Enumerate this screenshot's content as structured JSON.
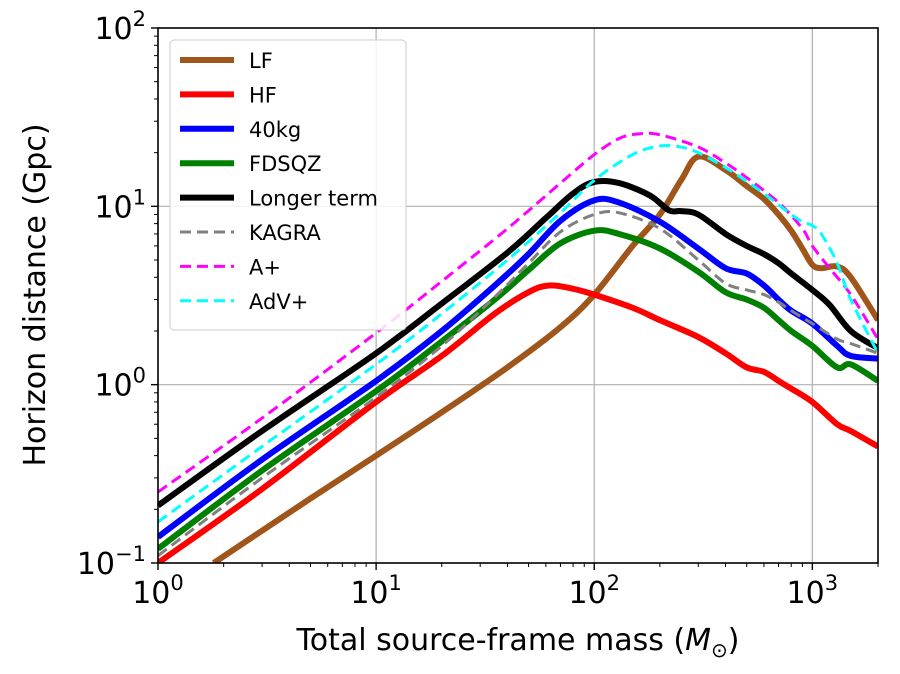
{
  "chart_data": {
    "type": "line",
    "xscale": "log",
    "yscale": "log",
    "xlabel_main": "Total source-frame mass (",
    "xlabel_symbol": "M",
    "xlabel_subscript": "⊙",
    "xlabel_close": ")",
    "ylabel": "Horizon distance (Gpc)",
    "xlim": [
      1,
      2000
    ],
    "ylim": [
      0.1,
      100
    ],
    "grid": true,
    "legend_position": "upper-left",
    "x_ticks": [
      {
        "value": 1,
        "base": "10",
        "exp": "0"
      },
      {
        "value": 10,
        "base": "10",
        "exp": "1"
      },
      {
        "value": 100,
        "base": "10",
        "exp": "2"
      },
      {
        "value": 1000,
        "base": "10",
        "exp": "3"
      }
    ],
    "y_ticks": [
      {
        "value": 0.1,
        "base": "10",
        "exp": "−1"
      },
      {
        "value": 1,
        "base": "10",
        "exp": "0"
      },
      {
        "value": 10,
        "base": "10",
        "exp": "1"
      },
      {
        "value": 100,
        "base": "10",
        "exp": "2"
      }
    ],
    "series": [
      {
        "name": "LF",
        "color": "#a0561a",
        "dash": "solid",
        "x": [
          1.8,
          5,
          10,
          20,
          40,
          70,
          100,
          150,
          200,
          250,
          300,
          400,
          500,
          600,
          700,
          800,
          900,
          1000,
          1100,
          1300,
          1500,
          2000
        ],
        "y": [
          0.1,
          0.23,
          0.4,
          0.7,
          1.25,
          2.1,
          3.2,
          6,
          9,
          14,
          19,
          16,
          13,
          11,
          9,
          7.3,
          5.8,
          4.7,
          4.5,
          4.6,
          4.0,
          2.3
        ]
      },
      {
        "name": "HF",
        "color": "#ff0000",
        "dash": "solid",
        "x": [
          1,
          3,
          10,
          20,
          35,
          50,
          62,
          80,
          100,
          150,
          200,
          300,
          400,
          500,
          600,
          700,
          800,
          1000,
          1300,
          1500,
          2000
        ],
        "y": [
          0.1,
          0.26,
          0.8,
          1.45,
          2.5,
          3.3,
          3.6,
          3.45,
          3.2,
          2.7,
          2.3,
          1.85,
          1.5,
          1.25,
          1.18,
          1.05,
          0.95,
          0.8,
          0.6,
          0.55,
          0.45
        ]
      },
      {
        "name": "40kg",
        "color": "#0000ff",
        "dash": "solid",
        "x": [
          1,
          3,
          10,
          20,
          35,
          50,
          70,
          100,
          130,
          200,
          300,
          400,
          500,
          600,
          700,
          800,
          1000,
          1300,
          1500,
          2000
        ],
        "y": [
          0.14,
          0.38,
          1.05,
          2.0,
          3.6,
          5.4,
          8.3,
          10.8,
          10.5,
          8.2,
          5.8,
          4.5,
          4.2,
          3.6,
          3.0,
          2.6,
          2.2,
          1.65,
          1.45,
          1.4
        ]
      },
      {
        "name": "FDSQZ",
        "color": "#008000",
        "dash": "solid",
        "x": [
          1,
          3,
          10,
          20,
          35,
          50,
          70,
          100,
          130,
          200,
          300,
          400,
          500,
          600,
          700,
          800,
          1000,
          1300,
          1500,
          2000
        ],
        "y": [
          0.12,
          0.33,
          0.92,
          1.75,
          3.0,
          4.4,
          6.2,
          7.3,
          7.0,
          5.8,
          4.3,
          3.3,
          3.0,
          2.7,
          2.3,
          2.0,
          1.65,
          1.25,
          1.3,
          1.05
        ]
      },
      {
        "name": "Longer term",
        "color": "#000000",
        "dash": "solid",
        "x": [
          1,
          3,
          10,
          20,
          40,
          60,
          80,
          100,
          130,
          180,
          220,
          250,
          300,
          400,
          500,
          600,
          700,
          800,
          1000,
          1200,
          1500,
          2000
        ],
        "y": [
          0.21,
          0.55,
          1.5,
          2.85,
          5.5,
          8.6,
          11.8,
          13.7,
          13.5,
          11.5,
          9.5,
          9.4,
          9.0,
          7.0,
          6.0,
          5.4,
          4.8,
          4.2,
          3.4,
          2.8,
          2.0,
          1.6
        ]
      },
      {
        "name": "KAGRA",
        "color": "#808080",
        "dash": "dashed",
        "x": [
          1,
          3,
          10,
          20,
          35,
          50,
          70,
          100,
          130,
          200,
          300,
          400,
          500,
          600,
          700,
          800,
          1000,
          1300,
          1500,
          2000
        ],
        "y": [
          0.11,
          0.3,
          0.85,
          1.65,
          3.1,
          4.8,
          7.2,
          9.0,
          9.2,
          7.5,
          5.0,
          3.7,
          3.4,
          3.2,
          2.9,
          2.6,
          2.2,
          1.8,
          1.7,
          1.5
        ]
      },
      {
        "name": "A+",
        "color": "#ff00ff",
        "dash": "dashed",
        "x": [
          1,
          3,
          10,
          20,
          40,
          70,
          100,
          130,
          160,
          200,
          300,
          400,
          500,
          700,
          900,
          1000,
          1200,
          1500,
          2000
        ],
        "y": [
          0.25,
          0.65,
          1.95,
          3.8,
          7.5,
          13.5,
          19.5,
          24,
          25.5,
          25.2,
          21.5,
          17.5,
          14.5,
          10.5,
          7.5,
          6.0,
          4.5,
          3.2,
          1.8
        ]
      },
      {
        "name": "AdV+",
        "color": "#00ffff",
        "dash": "dashed",
        "x": [
          1,
          3,
          10,
          20,
          40,
          70,
          100,
          150,
          200,
          250,
          300,
          400,
          500,
          600,
          700,
          800,
          900,
          1000,
          1100,
          1300,
          1500,
          2000
        ],
        "y": [
          0.17,
          0.45,
          1.3,
          2.5,
          5.0,
          9.2,
          14,
          19.5,
          21.8,
          21.5,
          20,
          16.5,
          13.8,
          11.8,
          10.2,
          9.0,
          8.2,
          7.8,
          7.0,
          4.8,
          3.0,
          1.5
        ]
      }
    ]
  }
}
